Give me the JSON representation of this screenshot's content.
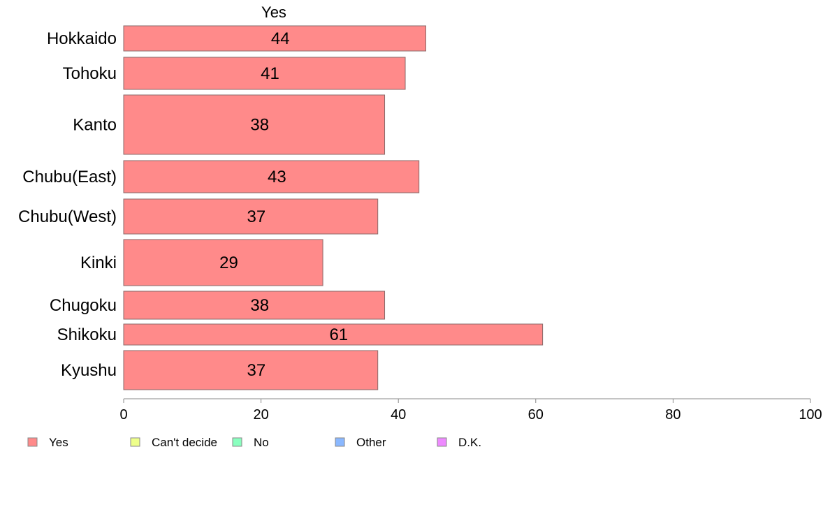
{
  "chart_data": {
    "type": "bar",
    "orientation": "horizontal",
    "title": "Yes",
    "categories": [
      "Hokkaido",
      "Tohoku",
      "Kanto",
      "Chubu(East)",
      "Chubu(West)",
      "Kinki",
      "Chugoku",
      "Shikoku",
      "Kyushu"
    ],
    "series": [
      {
        "name": "Yes",
        "values": [
          44,
          41,
          38,
          43,
          37,
          29,
          38,
          61,
          37
        ],
        "color": "#ff8a8a"
      }
    ],
    "value_labels": [
      "44",
      "41",
      "38",
      "43",
      "37",
      "29",
      "38",
      "61",
      "37"
    ],
    "xlim": [
      0,
      100
    ],
    "xticks": [
      "0",
      "20",
      "40",
      "60",
      "80",
      "100"
    ],
    "grid": false,
    "legend": {
      "position": "bottom",
      "items": [
        {
          "label": "Yes",
          "color": "#ff8a8a"
        },
        {
          "label": "Can't decide",
          "color": "#eeff8a"
        },
        {
          "label": "No",
          "color": "#8affbf"
        },
        {
          "label": "Other",
          "color": "#8ab8ff"
        },
        {
          "label": "D.K.",
          "color": "#ee8aff"
        }
      ]
    }
  }
}
